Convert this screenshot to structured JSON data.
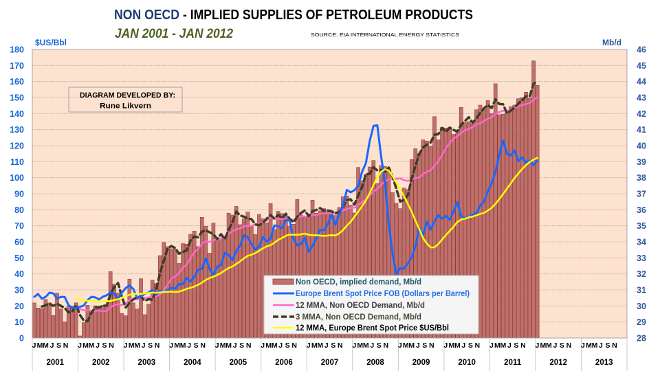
{
  "header": {
    "title_highlight": "NON OECD",
    "title_rest": "- IMPLIED SUPPLIES OF PETROLEUM PRODUCTS",
    "subtitle": "JAN 2001 - JAN 2012",
    "source": "SOURCE: EIA INTERNATIONAL ENERGY STATISTICS"
  },
  "credit": {
    "line1": "DIAGRAM DEVELOPED BY:",
    "line2": "Rune Likvern"
  },
  "colors": {
    "plot_background": "#fde2d0",
    "bar_fill": "#c0706a",
    "bar_edge": "#8e3b3b",
    "brent_line": "#1a66ff",
    "mma12_demand_line": "#ff66cc",
    "mma3_demand_line": "#3d3d26",
    "mma12_brent_line": "#ffff00",
    "left_axis_text": "#1565d8",
    "right_axis_text": "#2e5a96",
    "title_highlight": "#1f3b6e",
    "subtitle": "#4f6228"
  },
  "chart_data": {
    "type": "bar",
    "secondary_type": "line",
    "title": "NON OECD - IMPLIED SUPPLIES OF PETROLEUM PRODUCTS",
    "subtitle": "JAN 2001 - JAN 2012",
    "source": "SOURCE: EIA INTERNATIONAL ENERGY STATISTICS",
    "xlabel": "",
    "ylabel": "$US/Bbl",
    "y2label": "Mb/d",
    "grid": true,
    "x": {
      "start": "2001-01",
      "end": "2013-12",
      "months": 156,
      "month_labels": [
        "J",
        "M",
        "M",
        "J",
        "S",
        "N"
      ],
      "years": [
        "2001",
        "2002",
        "2003",
        "2004",
        "2005",
        "2006",
        "2007",
        "2008",
        "2009",
        "2010",
        "2011",
        "2012",
        "2013"
      ]
    },
    "y_left": {
      "label": "$US/Bbl",
      "range": [
        0,
        180
      ],
      "ticks": [
        0,
        10,
        20,
        30,
        40,
        50,
        60,
        70,
        80,
        90,
        100,
        110,
        120,
        130,
        140,
        150,
        160,
        170,
        180
      ]
    },
    "y_right": {
      "label": "Mb/d",
      "range": [
        28,
        46
      ],
      "ticks": [
        28,
        29,
        30,
        31,
        32,
        33,
        34,
        35,
        36,
        37,
        38,
        39,
        40,
        41,
        42,
        43,
        44,
        45,
        46
      ]
    },
    "legend": {
      "position": "bottom-center"
    },
    "series": [
      {
        "id": "non-oecd-demand",
        "name": "Non OECD, implied demand, Mb/d",
        "type": "bar",
        "axis": "right",
        "start": "2001-01",
        "color": "#c0706a",
        "edge_color": "#8e3b3b",
        "legend_color": "#215967",
        "values": [
          30.19,
          29.87,
          29.84,
          30.41,
          30.19,
          29.41,
          30.8,
          29.81,
          29.01,
          29.99,
          29.99,
          30.19,
          28.13,
          28.96,
          30.04,
          29.7,
          30.01,
          29.99,
          30.04,
          30.04,
          32.14,
          31.35,
          30.8,
          29.53,
          29.39,
          31.67,
          30.19,
          29.81,
          31.7,
          29.46,
          30.1,
          31.61,
          31.4,
          33.14,
          33.96,
          33.7,
          33.57,
          33.55,
          32.65,
          33.89,
          33.86,
          34.47,
          34.67,
          33.7,
          35.53,
          34.97,
          33.29,
          35.17,
          34.07,
          34.2,
          34.25,
          35.79,
          35.67,
          36.21,
          35.07,
          35.43,
          35.86,
          34.95,
          34.45,
          35.71,
          35.43,
          35.19,
          36.39,
          34.76,
          35.9,
          35.76,
          35.6,
          34.96,
          35.1,
          36.64,
          35.67,
          35.57,
          35.57,
          36.6,
          35.79,
          35.93,
          36.07,
          35.86,
          35.79,
          35.64,
          36.14,
          36.81,
          36.86,
          36.29,
          35.8,
          38.64,
          37.81,
          38.21,
          38.67,
          39.07,
          37.64,
          38.76,
          38.7,
          38.43,
          37.07,
          36.4,
          36.07,
          37.36,
          37.26,
          39.14,
          39.81,
          39.5,
          40.36,
          40.29,
          39.96,
          41.81,
          40.36,
          41.14,
          41.1,
          41.14,
          40.7,
          40.8,
          42.39,
          41.43,
          41.5,
          41.36,
          42.24,
          42.53,
          42.24,
          42.81,
          42.0,
          43.86,
          41.93,
          41.96,
          42.15,
          42.43,
          42.53,
          42.93,
          43.0,
          43.33,
          42.96,
          45.29,
          43.76
        ]
      },
      {
        "id": "brent-price",
        "name": "Europe Brent Spot Price FOB (Dollars per Barrel)",
        "type": "line",
        "style": "solid",
        "axis": "left",
        "start": "2001-01",
        "color": "#1a66ff",
        "legend_color": "#1f6fe8",
        "values": [
          25.62,
          27.5,
          24.5,
          25.66,
          28.31,
          27.85,
          24.61,
          25.68,
          25.62,
          20.54,
          18.8,
          18.71,
          19.42,
          20.28,
          23.7,
          25.73,
          25.35,
          24.08,
          25.74,
          26.65,
          28.4,
          27.54,
          24.34,
          28.33,
          31.18,
          32.77,
          30.61,
          25.0,
          25.86,
          27.65,
          28.35,
          29.89,
          27.11,
          29.61,
          28.75,
          29.81,
          31.28,
          30.86,
          33.63,
          33.59,
          37.57,
          35.18,
          38.22,
          42.74,
          43.2,
          49.78,
          43.11,
          39.6,
          44.51,
          45.48,
          53.1,
          51.88,
          48.65,
          54.35,
          57.52,
          63.98,
          62.91,
          58.54,
          55.24,
          56.86,
          62.99,
          60.21,
          62.06,
          70.26,
          69.78,
          68.56,
          73.67,
          73.23,
          61.96,
          57.81,
          58.76,
          62.47,
          53.68,
          57.56,
          62.05,
          67.49,
          67.21,
          71.05,
          76.93,
          70.76,
          77.17,
          82.34,
          92.41,
          90.93,
          92.18,
          94.99,
          103.64,
          109.07,
          122.8,
          132.32,
          132.72,
          113.24,
          97.23,
          71.58,
          52.45,
          39.95,
          43.44,
          43.32,
          46.54,
          50.18,
          57.3,
          68.61,
          64.44,
          72.51,
          67.65,
          72.77,
          76.66,
          74.46,
          76.17,
          73.75,
          78.83,
          84.82,
          75.95,
          74.76,
          75.58,
          77.04,
          77.84,
          82.67,
          85.28,
          91.45,
          96.52,
          103.72,
          114.64,
          123.26,
          114.99,
          113.83,
          116.97,
          110.22,
          112.83,
          109.55,
          110.77,
          107.87,
          110.69
        ]
      },
      {
        "id": "mma12-demand",
        "name": "12 MMA, Non OECD Demand, Mb/d",
        "type": "line",
        "style": "solid",
        "axis": "right",
        "color": "#ff66cc",
        "legend_color": "#404040",
        "moving_average": {
          "of": "non-oecd-demand",
          "window": 12
        }
      },
      {
        "id": "mma3-demand",
        "name": "3 MMA, Non OECD Demand, Mb/d",
        "type": "line",
        "style": "dashed",
        "axis": "right",
        "color": "#3d3d26",
        "legend_color": "#4a4a30",
        "moving_average": {
          "of": "non-oecd-demand",
          "window": 3
        }
      },
      {
        "id": "mma12-brent",
        "name": "12 MMA, Europe Brent Spot Price $US/Bbl",
        "type": "line",
        "style": "solid",
        "axis": "left",
        "color": "#ffff00",
        "legend_color": "#000000",
        "moving_average": {
          "of": "brent-price",
          "window": 12
        }
      }
    ]
  }
}
